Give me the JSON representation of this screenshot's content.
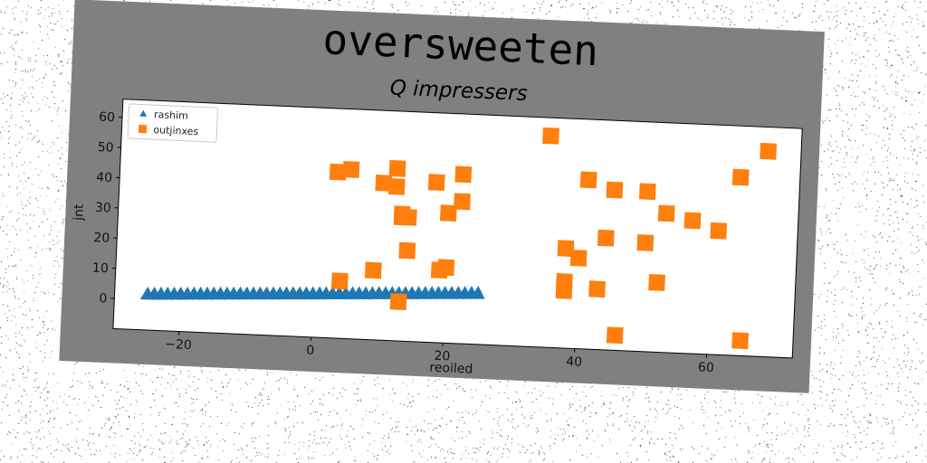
{
  "colors": {
    "figure_background": "#808080",
    "plot_background": "#ffffff",
    "series_1": "#1f77b4",
    "series_2": "#ff7f0e"
  },
  "chart_data": {
    "type": "scatter",
    "title": "oversweeten",
    "subtitle": "Q impressers",
    "xlabel": "reoiled",
    "ylabel": "jnt",
    "xlim": [
      -30,
      73
    ],
    "ylim": [
      -10,
      66
    ],
    "xticks": [
      -20,
      0,
      20,
      40,
      60
    ],
    "yticks": [
      0,
      10,
      20,
      30,
      40,
      50,
      60
    ],
    "grid": false,
    "legend_position": "top-left",
    "series": [
      {
        "name": "rashim",
        "marker": "triangle",
        "color": "#1f77b4",
        "x": [
          -25,
          -24,
          -23,
          -22,
          -21,
          -20,
          -19,
          -18,
          -17,
          -16,
          -15,
          -14,
          -13,
          -12,
          -11,
          -10,
          -9,
          -8,
          -7,
          -6,
          -5,
          -4,
          -3,
          -2,
          -1,
          0,
          1,
          2,
          3,
          4,
          5,
          6,
          7,
          8,
          9,
          10,
          11,
          12,
          13,
          14,
          15,
          16,
          17,
          18,
          19,
          20,
          21,
          22,
          23,
          24,
          25
        ],
        "y": [
          2.0,
          2.1,
          2.2,
          2.3,
          2.4,
          2.5,
          2.6,
          2.7,
          2.8,
          2.9,
          3.0,
          3.1,
          3.2,
          3.3,
          3.4,
          3.5,
          3.6,
          3.7,
          3.8,
          3.9,
          4.0,
          4.1,
          4.2,
          4.3,
          4.4,
          4.5,
          4.6,
          4.7,
          4.8,
          4.9,
          5.0,
          5.1,
          5.2,
          5.3,
          5.4,
          5.5,
          5.6,
          5.7,
          5.8,
          5.9,
          6.0,
          6.1,
          6.2,
          6.3,
          6.4,
          6.5,
          6.6,
          6.7,
          6.8,
          6.9,
          7.0
        ]
      },
      {
        "name": "outjinxes",
        "marker": "square",
        "color": "#ff7f0e",
        "x": [
          3,
          5,
          10,
          12,
          13,
          14,
          18,
          20,
          22,
          22,
          12,
          14,
          13,
          19,
          9,
          4,
          13,
          20,
          35,
          41,
          45,
          50,
          53,
          57,
          61,
          64,
          68,
          38,
          40,
          44,
          50,
          38,
          38,
          43,
          52,
          46,
          65
        ],
        "y": [
          45,
          46,
          42,
          41,
          31,
          31,
          43,
          33,
          37,
          46,
          47,
          20,
          3,
          14,
          13,
          9,
          32,
          15,
          60,
          46,
          43,
          43,
          36,
          34,
          31,
          49,
          58,
          23,
          20,
          27,
          26,
          12,
          9,
          10,
          13,
          -5,
          -5
        ]
      }
    ]
  }
}
